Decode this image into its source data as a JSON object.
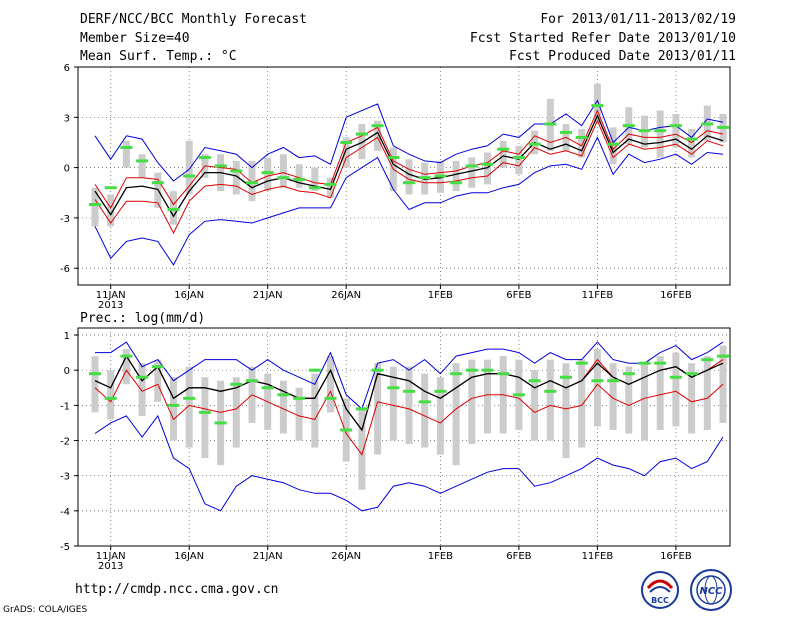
{
  "header": {
    "title": "DERF/NCC/BCC Monthly Forecast",
    "member_size": "Member Size=40",
    "variable": "Mean Surf. Temp.: °C",
    "for_range": "For 2013/01/11-2013/02/19",
    "refer_date": "Fcst Started Refer Date 2013/01/10",
    "produced_date": "Fcst Produced Date 2013/01/11"
  },
  "footer": {
    "url": "http://cmdp.ncc.cma.gov.cn",
    "credit": "GrADS: COLA/IGES",
    "logo_left_text": "BCC",
    "logo_right_text": "NCC"
  },
  "colors": {
    "blue": "#0000dd",
    "red": "#dd0000",
    "black": "#000000",
    "green": "#44dd44",
    "box": "#cccccc"
  },
  "chart_data": [
    {
      "type": "line",
      "title": "Mean Surf. Temp.: °C",
      "ylim": [
        -7,
        6
      ],
      "yticks": [
        -6,
        -3,
        0,
        3,
        6
      ],
      "ytick_labels": [
        "-6",
        "-3",
        "0",
        "3",
        "6"
      ],
      "xtick_labels": [
        "11JAN",
        "16JAN",
        "21JAN",
        "26JAN",
        "1FEB",
        "6FEB",
        "11FEB",
        "16FEB"
      ],
      "xtick_days": [
        1,
        6,
        11,
        16,
        22,
        27,
        32,
        37
      ],
      "year_label": "2013",
      "days": 40,
      "series": [
        {
          "name": "max",
          "color": "blue",
          "values": [
            1.9,
            0.5,
            1.9,
            1.7,
            0.3,
            -0.8,
            -0.1,
            1.2,
            1.0,
            0.8,
            0.0,
            0.8,
            1.2,
            0.6,
            0.7,
            0.2,
            3.0,
            3.4,
            3.8,
            1.3,
            0.8,
            0.4,
            0.3,
            0.8,
            1.1,
            1.3,
            2.0,
            1.8,
            2.6,
            2.6,
            3.2,
            2.5,
            4.0,
            1.5,
            2.4,
            2.2,
            2.4,
            2.5,
            1.8,
            2.9,
            2.7
          ]
        },
        {
          "name": "upper",
          "color": "red",
          "values": [
            -1.0,
            -2.4,
            -0.6,
            -0.6,
            -0.7,
            -2.2,
            -1.1,
            0.1,
            0.0,
            -0.1,
            -0.9,
            -0.5,
            -0.3,
            -0.6,
            -0.9,
            -1.0,
            1.5,
            1.9,
            2.4,
            0.4,
            -0.1,
            -0.4,
            -0.3,
            -0.2,
            0.1,
            0.3,
            1.0,
            0.8,
            1.9,
            1.5,
            1.8,
            1.3,
            3.4,
            1.1,
            2.0,
            1.8,
            1.8,
            2.0,
            1.5,
            2.2,
            2.0
          ]
        },
        {
          "name": "mean",
          "color": "black",
          "values": [
            -1.4,
            -2.8,
            -1.2,
            -1.1,
            -1.3,
            -2.9,
            -1.4,
            -0.3,
            -0.3,
            -0.5,
            -1.2,
            -0.8,
            -0.6,
            -0.9,
            -1.1,
            -1.3,
            1.1,
            1.5,
            2.1,
            0.2,
            -0.4,
            -0.7,
            -0.6,
            -0.4,
            -0.2,
            0.0,
            0.7,
            0.5,
            1.5,
            1.1,
            1.4,
            1.0,
            3.1,
            0.9,
            1.7,
            1.4,
            1.5,
            1.7,
            1.1,
            1.9,
            1.6
          ]
        },
        {
          "name": "lower",
          "color": "red",
          "values": [
            -1.9,
            -3.3,
            -2.0,
            -2.0,
            -2.1,
            -3.9,
            -2.0,
            -1.1,
            -1.0,
            -1.1,
            -1.6,
            -1.3,
            -1.1,
            -1.4,
            -1.5,
            -1.8,
            0.6,
            1.2,
            1.8,
            -0.1,
            -0.7,
            -0.9,
            -0.9,
            -0.8,
            -0.6,
            -0.5,
            0.3,
            0.1,
            1.2,
            0.8,
            1.0,
            0.7,
            2.8,
            0.6,
            1.4,
            1.1,
            1.2,
            1.4,
            0.8,
            1.6,
            1.3
          ]
        },
        {
          "name": "min",
          "color": "blue",
          "values": [
            -3.5,
            -5.4,
            -4.4,
            -4.2,
            -4.4,
            -5.8,
            -4.0,
            -3.2,
            -3.1,
            -3.2,
            -3.3,
            -3.0,
            -2.7,
            -2.4,
            -2.4,
            -2.4,
            -0.6,
            0.0,
            0.6,
            -1.3,
            -2.5,
            -2.1,
            -2.1,
            -1.7,
            -1.5,
            -1.5,
            -1.2,
            -1.0,
            -0.3,
            0.1,
            0.2,
            -0.1,
            1.8,
            -0.4,
            0.8,
            0.3,
            0.5,
            0.8,
            0.2,
            0.9,
            0.8
          ]
        },
        {
          "name": "observed",
          "color": "green",
          "values": [
            -2.2,
            -1.2,
            1.2,
            0.4,
            -0.9,
            -2.5,
            -0.5,
            0.6,
            0.1,
            -0.2,
            -0.9,
            -0.3,
            -0.6,
            -0.7,
            -1.2,
            -1.0,
            1.5,
            2.0,
            2.5,
            0.6,
            -0.9,
            -0.6,
            -0.5,
            -0.9,
            0.1,
            0.2,
            1.1,
            0.6,
            1.4,
            2.6,
            2.1,
            1.8,
            3.7,
            1.4,
            2.5,
            2.2,
            2.2,
            2.5,
            1.7,
            2.6,
            2.4
          ]
        }
      ],
      "box_top": [
        -1.2,
        -1.6,
        1.6,
        0.8,
        -0.3,
        -1.4,
        1.6,
        0.8,
        0.8,
        0.4,
        0.4,
        0.6,
        0.8,
        0.2,
        0.0,
        -0.6,
        1.8,
        2.6,
        2.8,
        1.2,
        0.5,
        0.3,
        0.4,
        0.4,
        0.6,
        0.9,
        1.6,
        1.3,
        2.2,
        4.1,
        2.6,
        2.3,
        5.0,
        2.4,
        3.6,
        3.1,
        3.4,
        3.2,
        2.3,
        3.7,
        3.2
      ],
      "box_bottom": [
        -3.5,
        -3.5,
        0.0,
        -0.6,
        -2.4,
        -3.4,
        -1.6,
        -0.6,
        -1.4,
        -1.6,
        -2.0,
        -1.4,
        -1.2,
        -1.2,
        -1.4,
        -1.8,
        0.0,
        0.5,
        1.0,
        -1.4,
        -1.6,
        -1.6,
        -1.5,
        -1.4,
        -1.2,
        -1.0,
        0.0,
        -0.4,
        0.8,
        1.0,
        1.0,
        0.6,
        2.6,
        0.2,
        1.4,
        1.2,
        0.6,
        1.2,
        0.6,
        1.6,
        1.5
      ]
    },
    {
      "type": "line",
      "title": "Prec.: log(mm/d)",
      "ylim": [
        -5,
        1.2
      ],
      "yticks": [
        -5,
        -4,
        -3,
        -2,
        -1,
        0,
        1
      ],
      "ytick_labels": [
        "-5",
        "-4",
        "-3",
        "-2",
        "-1",
        "0",
        "1"
      ],
      "xtick_labels": [
        "11JAN",
        "16JAN",
        "21JAN",
        "26JAN",
        "1FEB",
        "6FEB",
        "11FEB",
        "16FEB"
      ],
      "xtick_days": [
        1,
        6,
        11,
        16,
        22,
        27,
        32,
        37
      ],
      "year_label": "2013",
      "days": 40,
      "series": [
        {
          "name": "max",
          "color": "blue",
          "values": [
            0.5,
            0.5,
            0.8,
            0.1,
            0.3,
            -0.3,
            0.0,
            0.3,
            0.3,
            0.3,
            0.0,
            0.3,
            0.0,
            -0.2,
            -0.4,
            0.5,
            -0.7,
            -1.1,
            0.2,
            0.3,
            0.0,
            0.3,
            -0.1,
            0.4,
            0.5,
            0.6,
            0.6,
            0.5,
            0.2,
            0.5,
            0.3,
            0.3,
            0.8,
            0.3,
            0.2,
            0.2,
            0.5,
            0.7,
            0.3,
            0.5,
            0.8
          ]
        },
        {
          "name": "upper",
          "color": "red",
          "values": [
            -0.3,
            -0.5,
            0.4,
            -0.3,
            0.1,
            -0.8,
            -0.5,
            -0.5,
            -0.6,
            -0.5,
            -0.3,
            -0.4,
            -0.6,
            -0.8,
            -0.8,
            0.0,
            -1.1,
            -1.7,
            -0.1,
            -0.2,
            -0.3,
            -0.6,
            -0.8,
            -0.5,
            -0.2,
            -0.1,
            -0.1,
            -0.2,
            -0.5,
            -0.3,
            -0.5,
            -0.3,
            0.3,
            -0.2,
            -0.4,
            -0.2,
            0.0,
            0.1,
            -0.2,
            0.0,
            0.3
          ]
        },
        {
          "name": "mean",
          "color": "black",
          "values": [
            -0.3,
            -0.5,
            0.4,
            -0.3,
            0.1,
            -0.8,
            -0.5,
            -0.5,
            -0.6,
            -0.5,
            -0.3,
            -0.4,
            -0.6,
            -0.8,
            -0.8,
            0.0,
            -1.1,
            -1.7,
            -0.1,
            -0.2,
            -0.3,
            -0.6,
            -0.8,
            -0.5,
            -0.2,
            -0.1,
            -0.1,
            -0.2,
            -0.5,
            -0.3,
            -0.5,
            -0.3,
            0.2,
            -0.2,
            -0.4,
            -0.2,
            0.0,
            0.1,
            -0.2,
            0.0,
            0.2
          ]
        },
        {
          "name": "lower",
          "color": "red",
          "values": [
            -0.5,
            -0.9,
            0.0,
            -0.6,
            -0.4,
            -1.4,
            -1.0,
            -1.1,
            -1.2,
            -1.1,
            -0.7,
            -0.9,
            -1.1,
            -1.3,
            -1.4,
            -0.6,
            -1.8,
            -2.4,
            -0.9,
            -1.0,
            -1.1,
            -1.3,
            -1.5,
            -1.1,
            -0.8,
            -0.7,
            -0.7,
            -0.8,
            -1.2,
            -1.0,
            -1.1,
            -1.0,
            -0.4,
            -0.8,
            -1.0,
            -0.8,
            -0.7,
            -0.6,
            -0.9,
            -0.8,
            -0.4
          ]
        },
        {
          "name": "min",
          "color": "blue",
          "values": [
            -1.8,
            -1.5,
            -1.3,
            -1.9,
            -1.3,
            -2.5,
            -2.8,
            -3.8,
            -4.0,
            -3.3,
            -3.0,
            -3.1,
            -3.2,
            -3.4,
            -3.5,
            -3.5,
            -3.7,
            -4.0,
            -3.9,
            -3.3,
            -3.2,
            -3.3,
            -3.5,
            -3.3,
            -3.1,
            -2.9,
            -2.8,
            -2.8,
            -3.3,
            -3.2,
            -3.0,
            -2.8,
            -2.5,
            -2.7,
            -2.8,
            -3.0,
            -2.6,
            -2.5,
            -2.8,
            -2.6,
            -1.9
          ]
        },
        {
          "name": "observed",
          "color": "green",
          "values": [
            -0.1,
            -0.8,
            0.4,
            -0.2,
            0.1,
            -1.0,
            -0.8,
            -1.2,
            -1.5,
            -0.4,
            -0.3,
            -0.5,
            -0.7,
            -0.8,
            0.0,
            -0.8,
            -1.7,
            -1.1,
            0.0,
            -0.5,
            -0.6,
            -0.9,
            -0.6,
            -0.1,
            0.0,
            0.0,
            -0.1,
            -0.7,
            -0.3,
            -0.6,
            -0.2,
            0.2,
            -0.3,
            -0.3,
            -0.1,
            0.2,
            0.2,
            -0.2,
            -0.1,
            0.3,
            0.4
          ]
        },
        {
          "name": "box_top",
          "color": "box",
          "values": [
            0.4,
            0.0,
            0.6,
            0.2,
            0.3,
            -0.2,
            0.1,
            -0.2,
            -0.3,
            -0.2,
            0.1,
            -0.1,
            -0.3,
            -0.5,
            -0.1,
            0.4,
            -0.8,
            -1.1,
            0.2,
            0.1,
            0.1,
            -0.1,
            -0.2,
            0.2,
            0.3,
            0.3,
            0.4,
            0.3,
            0.0,
            0.3,
            0.2,
            0.3,
            0.6,
            0.2,
            0.1,
            0.2,
            0.4,
            0.5,
            0.2,
            0.4,
            0.7
          ]
        }
      ],
      "box_bottom": [
        -1.2,
        -1.4,
        -0.4,
        -1.3,
        -0.9,
        -2.0,
        -2.2,
        -2.5,
        -2.7,
        -2.2,
        -1.5,
        -1.7,
        -1.8,
        -2.0,
        -2.2,
        -1.2,
        -2.6,
        -3.4,
        -2.4,
        -2.0,
        -2.1,
        -2.2,
        -2.4,
        -2.7,
        -2.1,
        -1.8,
        -1.8,
        -1.7,
        -2.0,
        -2.0,
        -2.5,
        -2.2,
        -1.6,
        -1.7,
        -1.8,
        -2.0,
        -1.7,
        -1.6,
        -1.8,
        -1.7,
        -1.5
      ]
    }
  ]
}
